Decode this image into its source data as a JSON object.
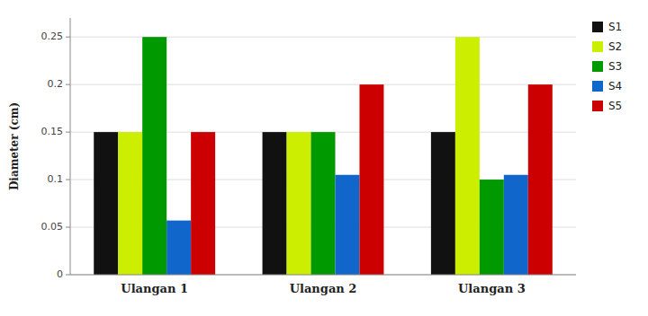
{
  "chart_data": {
    "type": "bar",
    "ylabel": "Diameter (cm)",
    "categories": [
      "Ulangan 1",
      "Ulangan 2",
      "Ulangan 3"
    ],
    "series": [
      {
        "name": "S1",
        "color": "#111111",
        "values": [
          0.15,
          0.15,
          0.15
        ]
      },
      {
        "name": "S2",
        "color": "#CCEE00",
        "values": [
          0.15,
          0.15,
          0.25
        ]
      },
      {
        "name": "S3",
        "color": "#009900",
        "values": [
          0.25,
          0.15,
          0.1
        ]
      },
      {
        "name": "S4",
        "color": "#1166CC",
        "values": [
          0.057,
          0.105,
          0.105
        ]
      },
      {
        "name": "S5",
        "color": "#CC0000",
        "values": [
          0.15,
          0.2,
          0.2
        ]
      }
    ],
    "ylim": [
      0,
      0.27
    ],
    "yticks": [
      0,
      0.05,
      0.1,
      0.15,
      0.2,
      0.25
    ],
    "grid": true,
    "legend": "right"
  }
}
